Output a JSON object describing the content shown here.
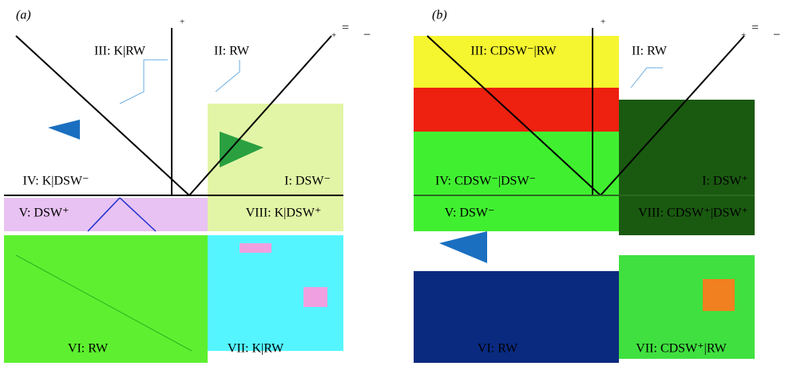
{
  "panels": [
    {
      "tag": "(a)",
      "regions": [
        "III: K|RW",
        "II: RW",
        "IV: K|DSW⁻",
        "I: DSW⁻",
        "V: DSW⁺",
        "VIII: K|DSW⁺",
        "VI: RW",
        "VII: K|RW"
      ],
      "signs": {
        "axis_top": "+",
        "corner_top": "+",
        "equal": "=",
        "minus": "−"
      }
    },
    {
      "tag": "(b)",
      "regions": [
        "III: CDSW⁻|RW",
        "II: RW",
        "IV: CDSW⁻|DSW⁻",
        "I: DSW⁺",
        "V: DSW⁻",
        "VIII: CDSW⁺|DSW⁺",
        "VI: RW",
        "VII: CDSW⁺|RW"
      ],
      "signs": {
        "axis_top": "+",
        "corner_top": "+",
        "equal": "=",
        "minus": "−"
      }
    }
  ]
}
